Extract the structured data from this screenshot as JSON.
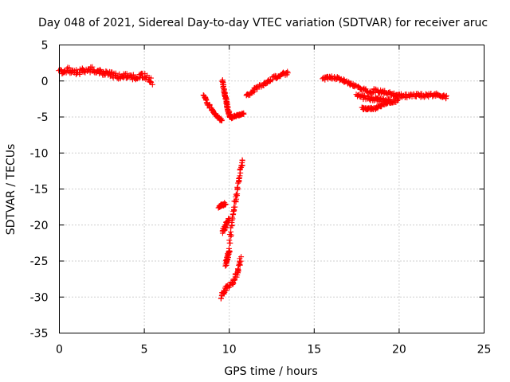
{
  "chart_data": {
    "type": "scatter",
    "title": "Day 048 of 2021, Sidereal Day-to-day VTEC variation (SDTVAR) for receiver aruc",
    "xlabel": "GPS time / hours",
    "ylabel": "SDTVAR / TECUs",
    "xlim": [
      0,
      25
    ],
    "ylim": [
      -35,
      5
    ],
    "x_ticks": [
      0,
      5,
      10,
      15,
      20,
      25
    ],
    "y_ticks": [
      5,
      0,
      -5,
      -10,
      -15,
      -20,
      -25,
      -30,
      -35
    ],
    "x_tick_labels": [
      "0",
      "5",
      "10",
      "15",
      "20",
      "25"
    ],
    "y_tick_labels": [
      "5",
      "0",
      "-5",
      "-10",
      "-15",
      "-20",
      "-25",
      "-30",
      "-35"
    ],
    "grid": true,
    "marker": "+",
    "series_color": "#ff0000",
    "segments": [
      {
        "x": [
          0.0,
          0.5,
          1.0,
          1.5,
          2.0,
          2.5,
          3.0,
          3.5,
          4.0,
          4.5,
          5.0,
          5.5
        ],
        "y": [
          1.3,
          1.5,
          1.2,
          1.4,
          1.6,
          1.2,
          0.9,
          0.6,
          0.7,
          0.5,
          0.8,
          -0.3
        ],
        "spread": 0.8
      },
      {
        "x": [
          8.5,
          8.8,
          9.1,
          9.4,
          9.6
        ],
        "y": [
          -2.0,
          -3.4,
          -4.5,
          -5.2,
          -5.6
        ],
        "spread": 0.3
      },
      {
        "x": [
          9.6,
          9.7,
          9.8,
          9.9,
          10.0,
          10.2
        ],
        "y": [
          0.2,
          -1.5,
          -2.5,
          -3.6,
          -4.8,
          -5.2
        ],
        "spread": 0.25
      },
      {
        "x": [
          10.0,
          10.3,
          10.6,
          10.9
        ],
        "y": [
          -5.0,
          -4.9,
          -4.7,
          -4.5
        ],
        "spread": 0.2
      },
      {
        "x": [
          11.0,
          11.5,
          12.0,
          12.5,
          13.0,
          13.5
        ],
        "y": [
          -2.2,
          -1.2,
          -0.4,
          0.3,
          0.8,
          1.2
        ],
        "spread": 0.5
      },
      {
        "x": [
          9.4,
          9.6,
          9.8
        ],
        "y": [
          -17.5,
          -17.2,
          -17.0
        ],
        "spread": 0.3
      },
      {
        "x": [
          10.0,
          10.2,
          10.4,
          10.6,
          10.8
        ],
        "y": [
          -23.0,
          -19.0,
          -16.0,
          -13.5,
          -10.8
        ],
        "spread": 0.8
      },
      {
        "x": [
          9.6,
          9.8,
          10.0
        ],
        "y": [
          -21.0,
          -20.0,
          -19.0
        ],
        "spread": 0.5
      },
      {
        "x": [
          9.8,
          9.9,
          10.0
        ],
        "y": [
          -25.5,
          -24.5,
          -23.5
        ],
        "spread": 0.4
      },
      {
        "x": [
          9.5,
          9.8,
          10.2,
          10.5,
          10.7
        ],
        "y": [
          -30.0,
          -28.8,
          -28.0,
          -26.5,
          -24.5
        ],
        "spread": 0.6
      },
      {
        "x": [
          15.5,
          16.0,
          16.5,
          17.0,
          17.5,
          18.0,
          18.5
        ],
        "y": [
          0.3,
          0.5,
          0.3,
          -0.3,
          -0.8,
          -1.3,
          -1.7
        ],
        "spread": 0.4
      },
      {
        "x": [
          17.5,
          18.0,
          18.5,
          19.0,
          19.5,
          20.0
        ],
        "y": [
          -2.0,
          -2.3,
          -2.5,
          -2.7,
          -2.8,
          -2.6
        ],
        "spread": 0.6
      },
      {
        "x": [
          17.8,
          18.2,
          18.6,
          19.0,
          19.4
        ],
        "y": [
          -3.8,
          -3.9,
          -3.8,
          -3.4,
          -3.0
        ],
        "spread": 0.3
      },
      {
        "x": [
          18.5,
          19.0,
          19.5,
          20.0
        ],
        "y": [
          -1.3,
          -1.5,
          -1.8,
          -2.2
        ],
        "spread": 0.5
      },
      {
        "x": [
          20.0,
          20.5,
          21.0,
          21.5,
          22.0,
          22.5,
          22.8
        ],
        "y": [
          -2.0,
          -2.1,
          -2.0,
          -2.0,
          -1.9,
          -2.0,
          -2.3
        ],
        "spread": 0.5
      }
    ]
  }
}
